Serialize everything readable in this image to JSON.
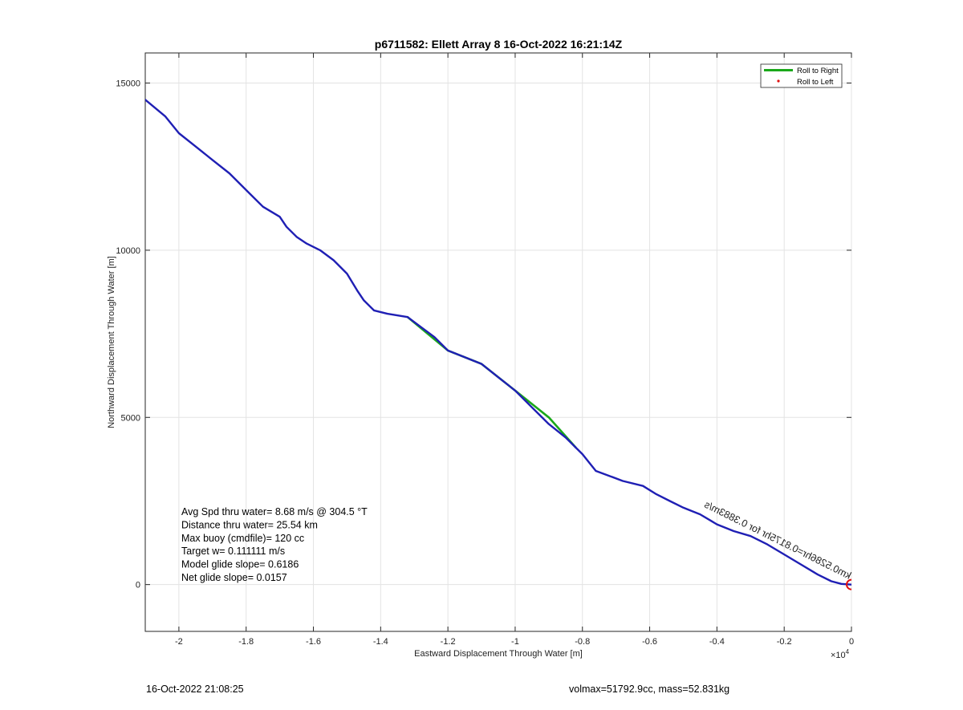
{
  "chart_data": {
    "type": "line",
    "title": "p6711582: Ellett Array 8 16-Oct-2022 16:21:14Z",
    "xlabel": "Eastward Displacement Through Water [m]",
    "ylabel": "Northward Displacement Through Water [m]",
    "x_multiplier_label": "×10",
    "x_multiplier_exponent": "4",
    "xlim": [
      -21000,
      0
    ],
    "ylim": [
      -1400,
      15900
    ],
    "x_tick_values": [
      -20000,
      -18000,
      -16000,
      -14000,
      -12000,
      -10000,
      -8000,
      -6000,
      -4000,
      -2000,
      0
    ],
    "x_tick_labels": [
      "-2",
      "-1.8",
      "-1.6",
      "-1.4",
      "-1.2",
      "-1",
      "-0.8",
      "-0.6",
      "-0.4",
      "-0.2",
      "0"
    ],
    "y_tick_values": [
      0,
      5000,
      10000,
      15000
    ],
    "y_tick_labels": [
      "0",
      "5000",
      "10000",
      "15000"
    ],
    "grid": true,
    "legend_position": "top-right",
    "legend": [
      {
        "label": "Roll to Right",
        "color": "#1aa81a",
        "style": "line"
      },
      {
        "label": "Roll to Left",
        "color": "#e01010",
        "style": "dot"
      }
    ],
    "series": [
      {
        "name": "Roll to Right",
        "color": "#1aa81a",
        "x": [
          -13200,
          -12000,
          -11000,
          -10000,
          -9000,
          -8200
        ],
        "y": [
          8000,
          7000,
          6600,
          5800,
          5000,
          4100
        ]
      },
      {
        "color": "#1f1fb4",
        "x": [
          -21000,
          -20400,
          -20000,
          -19500,
          -19000,
          -18500,
          -18000,
          -17500,
          -17000,
          -16800,
          -16500,
          -16200,
          -15800,
          -15400,
          -15000,
          -14700,
          -14500,
          -14200,
          -13800,
          -13200,
          -12800,
          -12400,
          -12000,
          -11500,
          -11000,
          -10500,
          -10000,
          -9500,
          -9000,
          -8500,
          -8000,
          -7600,
          -7200,
          -6800,
          -6200,
          -5800,
          -5400,
          -5000,
          -4500,
          -4000,
          -3500,
          -3000,
          -2500,
          -2000,
          -1500,
          -1000,
          -600,
          -300,
          0
        ],
        "y": [
          14500,
          14000,
          13500,
          13100,
          12700,
          12300,
          11800,
          11300,
          11000,
          10700,
          10400,
          10200,
          10000,
          9700,
          9300,
          8800,
          8500,
          8200,
          8100,
          8000,
          7700,
          7400,
          7000,
          6800,
          6600,
          6200,
          5800,
          5300,
          4800,
          4400,
          3900,
          3400,
          3250,
          3100,
          2950,
          2700,
          2500,
          2300,
          2100,
          1800,
          1600,
          1450,
          1200,
          900,
          600,
          300,
          100,
          20,
          0
        ]
      }
    ],
    "end_marker": {
      "x": 0,
      "y": 0,
      "color": "#e01010"
    },
    "track_annotation": "km0.5286hr=0.8175hr for 0.3883m/s  ",
    "stats_lines": [
      "Avg Spd thru water=  8.68 m/s @ 304.5 °T",
      "Distance thru water= 25.54 km",
      "Max buoy (cmdfile)= 120 cc",
      "Target w= 0.111111 m/s",
      "Model glide slope= 0.6186",
      "Net glide slope= 0.0157"
    ]
  },
  "footer": {
    "left": "16-Oct-2022 21:08:25",
    "right": "volmax=51792.9cc, mass=52.831kg"
  }
}
